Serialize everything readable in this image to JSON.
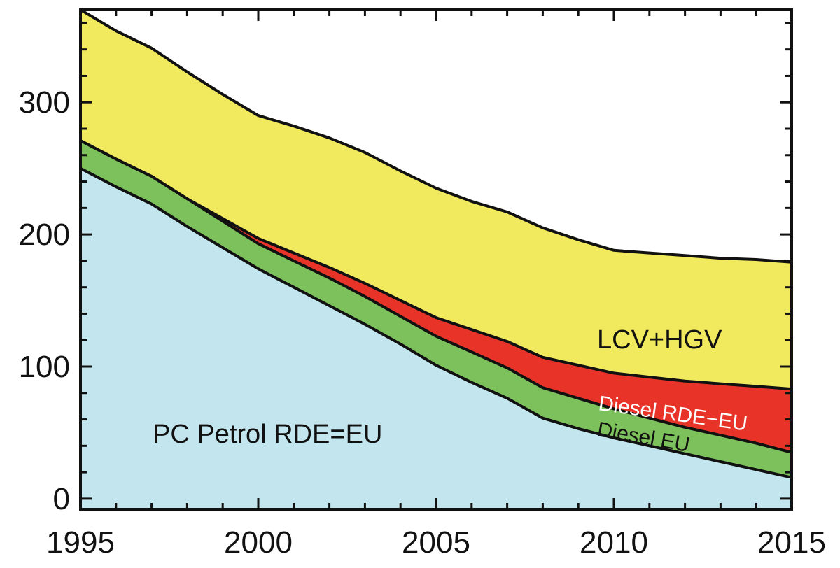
{
  "chart_data": {
    "type": "area",
    "title": "",
    "xlabel": "",
    "ylabel": "",
    "xlim": [
      1995,
      2015
    ],
    "ylim": [
      -8,
      370
    ],
    "grid": false,
    "x": [
      1995,
      1996,
      1997,
      1998,
      1999,
      2000,
      2001,
      2002,
      2003,
      2004,
      2005,
      2006,
      2007,
      2008,
      2009,
      2010,
      2011,
      2012,
      2013,
      2014,
      2015
    ],
    "xticks": [
      1995,
      2000,
      2005,
      2010,
      2015
    ],
    "yticks": [
      0,
      100,
      200,
      300
    ],
    "stacked_series": [
      {
        "name": "PC Petrol RDE=EU",
        "color": "#c3e6ee",
        "cumulative_top": [
          250,
          236,
          223,
          206,
          190,
          174,
          160,
          146,
          132,
          117,
          101,
          88,
          76,
          61,
          53,
          46,
          40,
          34,
          28,
          22,
          16
        ]
      },
      {
        "name": "Diesel EU",
        "color": "#7cc15b",
        "cumulative_top": [
          271,
          257,
          244,
          227,
          210,
          193,
          180,
          167,
          153,
          138,
          123,
          111,
          99,
          84,
          76,
          68,
          61,
          54,
          48,
          42,
          35
        ]
      },
      {
        "name": "Diesel RDE−EU",
        "color": "#e83428",
        "cumulative_top": [
          271,
          257,
          244,
          227,
          212,
          197,
          186,
          175,
          163,
          150,
          137,
          128,
          119,
          107,
          101,
          95,
          92,
          89,
          87,
          85,
          83
        ]
      },
      {
        "name": "LCV+HGV",
        "color": "#f2ea5e",
        "cumulative_top": [
          370,
          354,
          341,
          323,
          306,
          290,
          282,
          273,
          262,
          248,
          235,
          225,
          217,
          205,
          196,
          188,
          186,
          184,
          182,
          181,
          179
        ]
      }
    ],
    "annotations": [
      {
        "series_index": 0,
        "text": "PC Petrol RDE=EU"
      },
      {
        "series_index": 1,
        "text": "Diesel EU"
      },
      {
        "series_index": 2,
        "text": "Diesel RDE−EU"
      },
      {
        "series_index": 3,
        "text": "LCV+HGV"
      }
    ]
  }
}
